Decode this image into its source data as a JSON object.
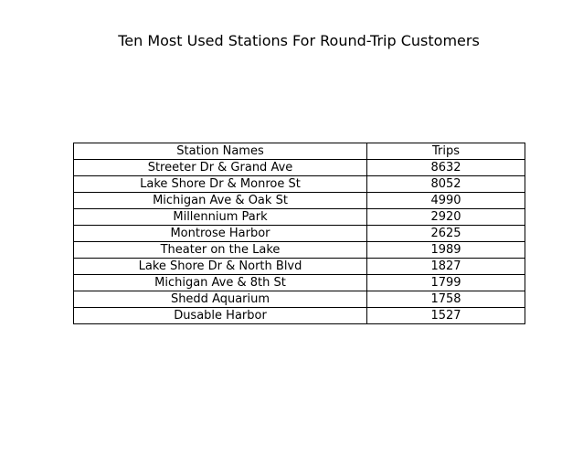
{
  "chart_data": {
    "type": "table",
    "title": "Ten Most Used Stations For Round-Trip Customers",
    "columns": [
      "Station Names",
      "Trips"
    ],
    "rows": [
      [
        "Streeter Dr & Grand Ave",
        "8632"
      ],
      [
        "Lake Shore Dr & Monroe St",
        "8052"
      ],
      [
        "Michigan Ave & Oak St",
        "4990"
      ],
      [
        "Millennium Park",
        "2920"
      ],
      [
        "Montrose Harbor",
        "2625"
      ],
      [
        "Theater on the Lake",
        "1989"
      ],
      [
        "Lake Shore Dr & North Blvd",
        "1827"
      ],
      [
        "Michigan Ave & 8th St",
        "1799"
      ],
      [
        "Shedd Aquarium",
        "1758"
      ],
      [
        "Dusable Harbor",
        "1527"
      ]
    ],
    "colors": {
      "text": "#000000",
      "border": "#000000",
      "background": "#ffffff"
    }
  }
}
